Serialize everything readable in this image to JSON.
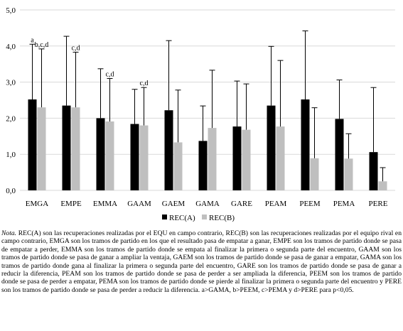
{
  "chart_data": {
    "type": "bar",
    "categories": [
      "EMGA",
      "EMPE",
      "EMMA",
      "GAAM",
      "GAEM",
      "GAMA",
      "GARE",
      "PEAM",
      "PEEM",
      "PEMA",
      "PERE"
    ],
    "series": [
      {
        "name": "REC(A)",
        "color": "#000000",
        "values": [
          2.52,
          2.35,
          2.0,
          1.84,
          2.22,
          1.37,
          1.77,
          2.35,
          2.52,
          1.98,
          1.06
        ],
        "sd": [
          1.53,
          1.92,
          1.37,
          0.96,
          1.93,
          0.97,
          1.26,
          1.64,
          1.9,
          1.08,
          1.79
        ],
        "labels": [
          "a",
          "",
          "",
          "",
          "",
          "",
          "",
          "",
          "",
          "",
          ""
        ]
      },
      {
        "name": "REC(B)",
        "color": "#bfbfbf",
        "values": [
          2.3,
          2.3,
          1.91,
          1.8,
          1.33,
          1.73,
          1.68,
          1.77,
          0.89,
          0.88,
          0.25
        ],
        "sd": [
          1.62,
          1.53,
          1.19,
          1.05,
          1.45,
          1.6,
          1.27,
          1.83,
          1.4,
          0.69,
          0.38
        ],
        "labels": [
          "b,c,d",
          "c,d",
          "c,d",
          "c,d",
          "",
          "",
          "",
          "",
          "",
          "",
          ""
        ]
      }
    ],
    "ylim": [
      0,
      5
    ],
    "yticks": [
      "0,0",
      "1,0",
      "2,0",
      "3,0",
      "4,0",
      "5,0"
    ],
    "grid": true,
    "legend": "bottom"
  },
  "note": {
    "label": "Nota.",
    "text": "REC(A) son las recuperaciones realizadas por el EQU en campo contrario, REC(B) son las recuperaciones realizadas por el equipo rival en campo contrario, EMGA son los tramos de partido en los que el resultado pasa de empatar a ganar, EMPE son los tramos de partido donde se pasa de empatar a perder, EMMA son los tramos de partido donde se empata al finalizar la primera o segunda parte del encuentro, GAAM son los tramos de partido donde se pasa de ganar a ampliar la ventaja, GAEM son los tramos de partido donde se pasa de ganar a empatar, GAMA son los tramos de partido donde gana al finalizar la primera o segunda parte del encuentro, GARE son los tramos de partido donde se pasa de ganar a reducir la diferencia, PEAM son los tramos de partido donde se pasa de perder a ser ampliada la diferencia, PEEM son los tramos de partido donde se pasa de perder a empatar, PEMA son los tramos de partido donde se pierde al finalizar la primera o segunda parte del encuentro y PERE son los tramos de partido donde se pasa de perder a reducir la diferencia. a>GAMA, b>PEEM, c>PEMA y d>PERE para p<0,05."
  }
}
